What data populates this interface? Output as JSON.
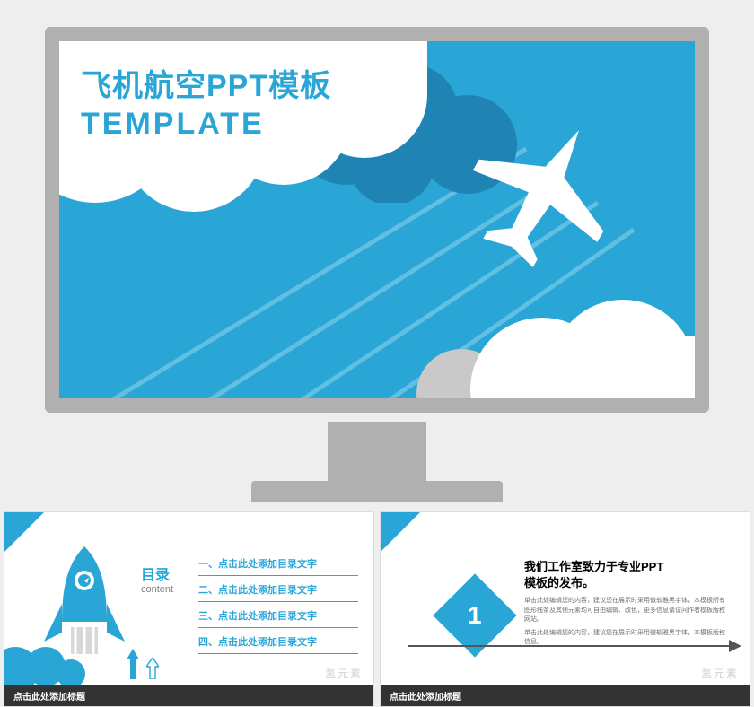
{
  "colors": {
    "sky": "#2aa6d6",
    "sky_dark": "#1f84b3",
    "accent": "#2aa6d6",
    "white": "#ffffff",
    "grey_cloud": "#c9c9c9",
    "monitor": "#b0b0b0",
    "page_bg": "#eeeeee",
    "footer_bar": "#333333",
    "text_grey": "#707070"
  },
  "main_slide": {
    "title_cn": "飞机航空PPT模板",
    "title_en": "TEMPLATE",
    "title_color": "#2aa6d6"
  },
  "watermark": "氢元素",
  "slide2": {
    "heading_cn": "目录",
    "heading_en": "content",
    "items": [
      "一、点击此处添加目录文字",
      "二、点击此处添加目录文字",
      "三、点击此处添加目录文字",
      "四、点击此处添加目录文字"
    ],
    "footer": "点击此处添加标题",
    "item_color": "#2aa6d6",
    "underline_color": "#2aa6d6"
  },
  "slide3": {
    "number": "1",
    "heading": "我们工作室致力于专业PPT\n模板的发布。",
    "body_lines": [
      "单击此处编辑您的内容，建议您在展示时采用微软雅黑字体，本模板所有图形线条及其他元素均可自由编辑、改色，更多信息请访问作者模板版权网站。",
      "单击此处编辑您的内容，建议您在展示时采用微软雅黑字体，本模板版权信息。"
    ],
    "footer": "点击此处添加标题",
    "diamond_color": "#2aa6d6"
  }
}
